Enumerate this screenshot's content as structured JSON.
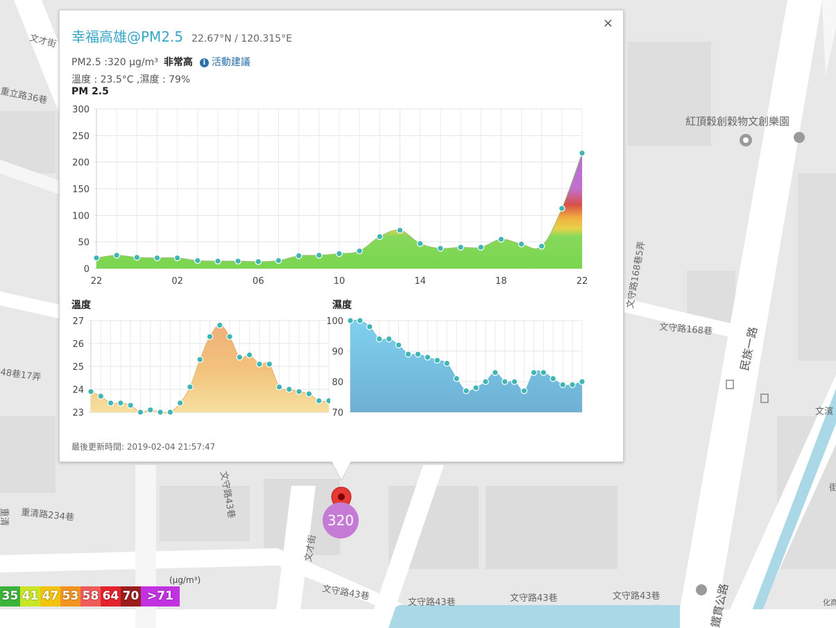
{
  "popup": {
    "title": "幸福高雄@PM2.5",
    "coords": "22.67°N / 120.315°E",
    "close_label": "×",
    "pm_reading": "PM2.5 :320 μg/m³",
    "pm_level": "非常高",
    "info_icon_glyph": "i",
    "advice_link": "活動建議",
    "weather": "溫度 : 23.5°C ,濕度 : 79%",
    "updated": "最後更新時間: 2019-02-04 21:57:47"
  },
  "pm_chart": {
    "title": "PM 2.5",
    "type": "area",
    "x_tick_labels": [
      "22",
      "02",
      "06",
      "10",
      "14",
      "18",
      "22"
    ],
    "y_tick_labels": [
      "0",
      "50",
      "100",
      "150",
      "200",
      "250",
      "300"
    ],
    "ylim": [
      0,
      300
    ],
    "values": [
      20,
      25,
      21,
      20,
      20,
      15,
      14,
      14,
      13,
      15,
      24,
      25,
      28,
      33,
      60,
      72,
      47,
      38,
      40,
      40,
      55,
      46,
      42,
      113,
      217
    ],
    "grid": true
  },
  "temp_chart": {
    "title": "溫度",
    "type": "area",
    "y_tick_labels": [
      "23",
      "24",
      "25",
      "26",
      "27"
    ],
    "ylim": [
      23,
      27
    ],
    "values": [
      23.9,
      23.7,
      23.4,
      23.4,
      23.3,
      23.0,
      23.1,
      23.0,
      23.0,
      23.4,
      24.1,
      25.3,
      26.3,
      26.8,
      26.3,
      25.4,
      25.5,
      25.1,
      25.1,
      24.1,
      24.0,
      23.9,
      23.8,
      23.5,
      23.5
    ],
    "grid": true
  },
  "hum_chart": {
    "title": "濕度",
    "type": "area",
    "y_tick_labels": [
      "70",
      "80",
      "90",
      "100"
    ],
    "ylim": [
      70,
      100
    ],
    "values": [
      100,
      100,
      98,
      94,
      94,
      92,
      89,
      89,
      88,
      87,
      86,
      81,
      77,
      78,
      80,
      83,
      80,
      80,
      77,
      83,
      83,
      81,
      79,
      79,
      80
    ],
    "grid": true
  },
  "marker": {
    "value": "320",
    "color": "#c57ad6"
  },
  "legend": {
    "unit": "(μg/m³)",
    "cells": [
      {
        "label": "35",
        "color": "#3cb43c"
      },
      {
        "label": "41",
        "color": "#c8e626"
      },
      {
        "label": "47",
        "color": "#f2c40e"
      },
      {
        "label": "53",
        "color": "#f29422"
      },
      {
        "label": "58",
        "color": "#ef5a5a"
      },
      {
        "label": "64",
        "color": "#e3222c"
      },
      {
        "label": "70",
        "color": "#9c1d1d"
      },
      {
        "label": ">71",
        "color": "#c232e0"
      }
    ]
  },
  "map": {
    "labels": {
      "wencai": "文才街",
      "chongli36": "重立路36巷",
      "hongding": "紅頂穀創穀物文創樂園",
      "wenshou168_5": "文守路168巷5弄",
      "wenshou168": "文守路168巷",
      "minzu": "民族一路",
      "lane48_17": "48巷17弄",
      "wenshou43_v": "文守路43巷",
      "chongqing234": "重清路234巷",
      "wencai2": "文才街",
      "wenshou43_a": "文守路43巷",
      "wenshou43_b": "文守路43巷",
      "wenshou43_c": "文守路43巷",
      "wenshou43_d": "文守路43巷",
      "jianguan": "鐵貫公路",
      "wen_edge": "文濱",
      "hua_edge": "化商",
      "lane_edge": "街",
      "chongqing_edge": "重清"
    }
  }
}
